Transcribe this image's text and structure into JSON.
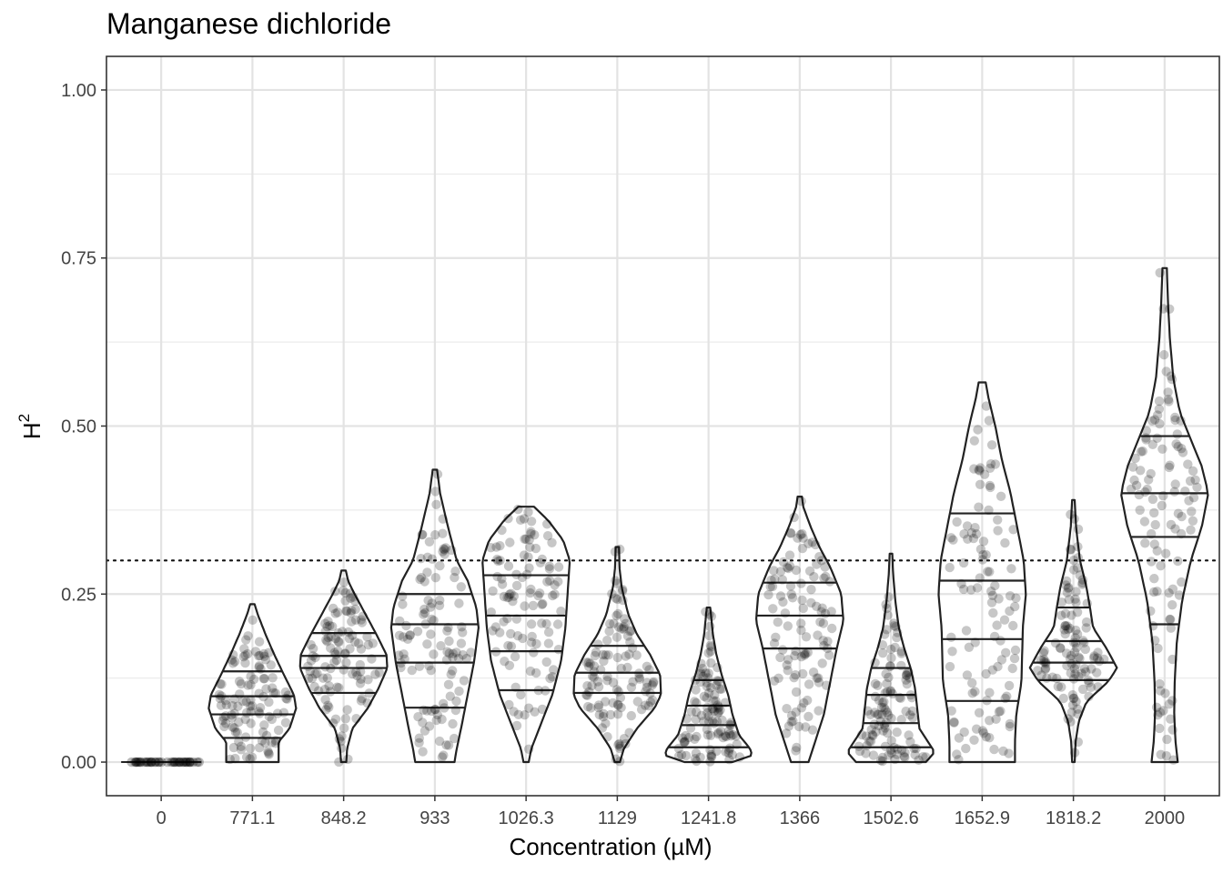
{
  "chart_data": {
    "type": "violin",
    "title": "Manganese dichloride",
    "xlabel": "Concentration (µM)",
    "ylabel": "H",
    "ylabel_superscript": "2",
    "ylim": [
      -0.05,
      1.05
    ],
    "yticks": [
      0.0,
      0.25,
      0.5,
      0.75,
      1.0
    ],
    "ytick_labels": [
      "0.00",
      "0.25",
      "0.50",
      "0.75",
      "1.00"
    ],
    "threshold": 0.3,
    "grid": true,
    "categories": [
      "0",
      "771.1",
      "848.2",
      "933",
      "1026.3",
      "1129",
      "1241.8",
      "1366",
      "1502.6",
      "1652.9",
      "1818.2",
      "2000"
    ],
    "violins": [
      {
        "category": "0",
        "min": 0,
        "max": 0,
        "quantiles": [
          0,
          0,
          0
        ],
        "profile": [
          [
            0,
            1
          ]
        ]
      },
      {
        "category": "771.1",
        "min": 0,
        "max": 0.235,
        "quantiles": [
          0.036,
          0.071,
          0.098,
          0.135
        ],
        "profile": [
          [
            0,
            0.6
          ],
          [
            0.03,
            0.6
          ],
          [
            0.05,
            0.85
          ],
          [
            0.08,
            1.0
          ],
          [
            0.1,
            0.95
          ],
          [
            0.13,
            0.72
          ],
          [
            0.16,
            0.5
          ],
          [
            0.19,
            0.3
          ],
          [
            0.22,
            0.12
          ],
          [
            0.235,
            0.05
          ]
        ]
      },
      {
        "category": "848.2",
        "min": 0,
        "max": 0.285,
        "quantiles": [
          0.103,
          0.14,
          0.158,
          0.192
        ],
        "profile": [
          [
            0,
            0.06
          ],
          [
            0.02,
            0.08
          ],
          [
            0.05,
            0.2
          ],
          [
            0.08,
            0.55
          ],
          [
            0.11,
            0.8
          ],
          [
            0.14,
            1.0
          ],
          [
            0.16,
            0.98
          ],
          [
            0.19,
            0.75
          ],
          [
            0.22,
            0.5
          ],
          [
            0.25,
            0.25
          ],
          [
            0.27,
            0.1
          ],
          [
            0.285,
            0.05
          ]
        ]
      },
      {
        "category": "933",
        "min": 0,
        "max": 0.435,
        "quantiles": [
          0.081,
          0.148,
          0.205,
          0.25
        ],
        "profile": [
          [
            0,
            0.45
          ],
          [
            0.02,
            0.5
          ],
          [
            0.05,
            0.6
          ],
          [
            0.1,
            0.75
          ],
          [
            0.15,
            0.9
          ],
          [
            0.2,
            1.0
          ],
          [
            0.23,
            0.95
          ],
          [
            0.27,
            0.75
          ],
          [
            0.3,
            0.5
          ],
          [
            0.35,
            0.3
          ],
          [
            0.4,
            0.12
          ],
          [
            0.435,
            0.05
          ]
        ]
      },
      {
        "category": "1026.3",
        "min": 0,
        "max": 0.38,
        "quantiles": [
          0.107,
          0.165,
          0.218,
          0.278
        ],
        "profile": [
          [
            0,
            0.06
          ],
          [
            0.02,
            0.12
          ],
          [
            0.05,
            0.3
          ],
          [
            0.1,
            0.6
          ],
          [
            0.15,
            0.8
          ],
          [
            0.2,
            0.9
          ],
          [
            0.25,
            0.95
          ],
          [
            0.3,
            1.0
          ],
          [
            0.33,
            0.85
          ],
          [
            0.36,
            0.5
          ],
          [
            0.38,
            0.18
          ]
        ]
      },
      {
        "category": "1129",
        "min": 0,
        "max": 0.32,
        "quantiles": [
          0.103,
          0.133,
          0.173
        ],
        "profile": [
          [
            0,
            0.06
          ],
          [
            0.02,
            0.15
          ],
          [
            0.05,
            0.45
          ],
          [
            0.08,
            0.85
          ],
          [
            0.1,
            1.0
          ],
          [
            0.13,
            0.98
          ],
          [
            0.16,
            0.75
          ],
          [
            0.19,
            0.45
          ],
          [
            0.22,
            0.25
          ],
          [
            0.26,
            0.1
          ],
          [
            0.29,
            0.05
          ],
          [
            0.32,
            0.04
          ]
        ]
      },
      {
        "category": "1241.8",
        "min": 0,
        "max": 0.23,
        "quantiles": [
          0.022,
          0.055,
          0.084,
          0.122
        ],
        "profile": [
          [
            0,
            0.55
          ],
          [
            0.01,
            1.0
          ],
          [
            0.02,
            0.95
          ],
          [
            0.04,
            0.7
          ],
          [
            0.07,
            0.55
          ],
          [
            0.1,
            0.45
          ],
          [
            0.13,
            0.3
          ],
          [
            0.16,
            0.18
          ],
          [
            0.19,
            0.1
          ],
          [
            0.23,
            0.04
          ]
        ]
      },
      {
        "category": "1366",
        "min": 0,
        "max": 0.395,
        "quantiles": [
          0.169,
          0.218,
          0.267
        ],
        "profile": [
          [
            0,
            0.2
          ],
          [
            0.03,
            0.35
          ],
          [
            0.07,
            0.55
          ],
          [
            0.12,
            0.7
          ],
          [
            0.17,
            0.85
          ],
          [
            0.21,
            1.0
          ],
          [
            0.25,
            0.95
          ],
          [
            0.29,
            0.7
          ],
          [
            0.32,
            0.45
          ],
          [
            0.35,
            0.25
          ],
          [
            0.38,
            0.08
          ],
          [
            0.395,
            0.05
          ]
        ]
      },
      {
        "category": "1502.6",
        "min": 0,
        "max": 0.31,
        "quantiles": [
          0.022,
          0.058,
          0.1,
          0.14
        ],
        "profile": [
          [
            0,
            0.8
          ],
          [
            0.015,
            1.0
          ],
          [
            0.03,
            0.85
          ],
          [
            0.05,
            0.65
          ],
          [
            0.08,
            0.6
          ],
          [
            0.11,
            0.55
          ],
          [
            0.14,
            0.45
          ],
          [
            0.17,
            0.3
          ],
          [
            0.2,
            0.18
          ],
          [
            0.24,
            0.1
          ],
          [
            0.28,
            0.05
          ],
          [
            0.31,
            0.03
          ]
        ]
      },
      {
        "category": "1652.9",
        "min": 0,
        "max": 0.565,
        "quantiles": [
          0.091,
          0.183,
          0.27,
          0.37
        ],
        "profile": [
          [
            0,
            0.75
          ],
          [
            0.03,
            0.75
          ],
          [
            0.07,
            0.78
          ],
          [
            0.12,
            0.9
          ],
          [
            0.2,
            0.93
          ],
          [
            0.25,
            1.0
          ],
          [
            0.3,
            0.95
          ],
          [
            0.35,
            0.8
          ],
          [
            0.4,
            0.65
          ],
          [
            0.45,
            0.45
          ],
          [
            0.5,
            0.3
          ],
          [
            0.54,
            0.15
          ],
          [
            0.565,
            0.08
          ]
        ]
      },
      {
        "category": "1818.2",
        "min": 0,
        "max": 0.39,
        "quantiles": [
          0.122,
          0.148,
          0.18,
          0.23
        ],
        "profile": [
          [
            0,
            0.03
          ],
          [
            0.03,
            0.05
          ],
          [
            0.06,
            0.12
          ],
          [
            0.09,
            0.3
          ],
          [
            0.12,
            0.8
          ],
          [
            0.14,
            1.0
          ],
          [
            0.17,
            0.75
          ],
          [
            0.2,
            0.45
          ],
          [
            0.23,
            0.38
          ],
          [
            0.26,
            0.3
          ],
          [
            0.3,
            0.15
          ],
          [
            0.35,
            0.06
          ],
          [
            0.39,
            0.03
          ]
        ]
      },
      {
        "category": "2000",
        "min": 0,
        "max": 0.735,
        "quantiles": [
          0.205,
          0.335,
          0.4,
          0.485
        ],
        "profile": [
          [
            0,
            0.3
          ],
          [
            0.03,
            0.25
          ],
          [
            0.07,
            0.22
          ],
          [
            0.12,
            0.23
          ],
          [
            0.18,
            0.28
          ],
          [
            0.24,
            0.4
          ],
          [
            0.3,
            0.6
          ],
          [
            0.35,
            0.85
          ],
          [
            0.4,
            1.0
          ],
          [
            0.44,
            0.85
          ],
          [
            0.48,
            0.6
          ],
          [
            0.52,
            0.35
          ],
          [
            0.57,
            0.2
          ],
          [
            0.63,
            0.12
          ],
          [
            0.68,
            0.08
          ],
          [
            0.735,
            0.05
          ]
        ]
      }
    ]
  }
}
